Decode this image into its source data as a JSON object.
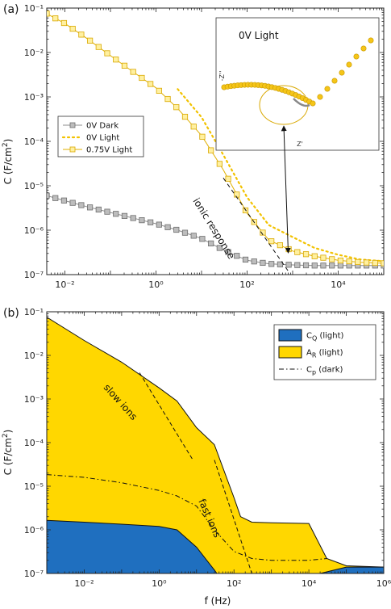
{
  "chart_data": [
    {
      "panel": "(a)",
      "type": "line",
      "ylabel": "C (F/cm²)",
      "xscale": "log",
      "yscale": "log",
      "xlim": [
        0.004,
        100000
      ],
      "ylim": [
        1e-07,
        0.1
      ],
      "xticks": [
        "10⁻²",
        "10⁰",
        "10²",
        "10⁴"
      ],
      "yticks": [
        "10⁻⁷",
        "10⁻⁶",
        "10⁻⁵",
        "10⁻⁴",
        "10⁻³",
        "10⁻²",
        "10⁻¹"
      ],
      "legend": {
        "position": "center-left"
      },
      "series": [
        {
          "name": "0V Dark",
          "color": "#8c8c8c",
          "style": "solid-square",
          "x": [
            0.004,
            0.01,
            0.03,
            0.1,
            0.3,
            1,
            3,
            10,
            30,
            100,
            300,
            1000,
            3000,
            10000,
            30000,
            100000
          ],
          "y": [
            6e-06,
            4.6e-06,
            3.4e-06,
            2.5e-06,
            1.9e-06,
            1.4e-06,
            1e-06,
            6.5e-07,
            3.6e-07,
            2.1e-07,
            1.75e-07,
            1.65e-07,
            1.6e-07,
            1.6e-07,
            1.6e-07,
            1.6e-07
          ]
        },
        {
          "name": "0V Light",
          "color": "#f2c200",
          "style": "dotted",
          "x": [
            3,
            10,
            30,
            100,
            300,
            1000,
            3000,
            10000,
            30000,
            100000
          ],
          "y": [
            0.0015,
            0.00035,
            5e-05,
            5.5e-06,
            1.3e-06,
            7e-07,
            4e-07,
            2.8e-07,
            2.2e-07,
            2e-07
          ]
        },
        {
          "name": "0.75V Light",
          "color": "#f2c200",
          "style": "solid-square",
          "x": [
            0.004,
            0.01,
            0.03,
            0.1,
            0.3,
            1,
            3,
            10,
            30,
            100,
            300,
            1000,
            3000,
            10000,
            30000,
            100000
          ],
          "y": [
            0.075,
            0.045,
            0.021,
            0.0085,
            0.0038,
            0.0016,
            0.00055,
            0.000135,
            2.3e-05,
            2.4e-06,
            6e-07,
            3.4e-07,
            2.6e-07,
            2.1e-07,
            1.9e-07,
            1.8e-07
          ]
        }
      ],
      "annotations": [
        {
          "text": "ionic response",
          "kind": "dashed-line",
          "x": [
            30,
            800
          ],
          "y": [
            1.5e-05,
            1.2e-07
          ]
        }
      ],
      "inset": {
        "title": "0V Light",
        "xlabel": "Z'",
        "ylabel": "-Z''",
        "arrow_target": {
          "x": 800,
          "y": 2.2e-07
        }
      }
    },
    {
      "panel": "(b)",
      "type": "area",
      "xlabel": "f (Hz)",
      "ylabel": "C (F/cm²)",
      "xscale": "log",
      "yscale": "log",
      "xlim": [
        0.001,
        1000000
      ],
      "ylim": [
        1e-07,
        0.1
      ],
      "xticks": [
        "10⁻²",
        "10⁰",
        "10²",
        "10⁴",
        "10⁶"
      ],
      "yticks": [
        "10⁻⁷",
        "10⁻⁶",
        "10⁻⁵",
        "10⁻⁴",
        "10⁻³",
        "10⁻²",
        "10⁻¹"
      ],
      "legend": {
        "position": "top-right"
      },
      "series": [
        {
          "name": "C<sub>Q</sub> (light)",
          "label": "C",
          "sub": "Q",
          "suffix": " (light)",
          "color": "#1f6fbf",
          "style": "filled",
          "x": [
            0.001,
            0.01,
            0.1,
            1,
            3,
            10,
            30,
            35,
            20000,
            100000,
            1000000
          ],
          "y": [
            1.65e-06,
            1.5e-06,
            1.35e-06,
            1.2e-06,
            1e-06,
            4e-07,
            1.2e-07,
            1e-07,
            1e-07,
            1.4e-07,
            1.4e-07
          ]
        },
        {
          "name": "A_R (light)",
          "label": "A",
          "sub": "R",
          "suffix": " (light)",
          "color": "#ffd700",
          "style": "filled",
          "x": [
            0.001,
            0.01,
            0.1,
            1,
            3,
            10,
            30,
            100,
            150,
            300,
            1000,
            10000,
            30000,
            100000,
            1000000
          ],
          "y": [
            0.075,
            0.022,
            0.007,
            0.0018,
            0.0009,
            0.00022,
            9e-05,
            5.5e-06,
            2e-06,
            1.5e-06,
            1.45e-06,
            1.4e-06,
            2.2e-07,
            1.5e-07,
            1.4e-07
          ]
        },
        {
          "name": "C_p (dark)",
          "label": "C",
          "sub": "p",
          "suffix": " (dark)",
          "color": "#000000",
          "style": "dash-dot",
          "x": [
            0.001,
            0.01,
            0.1,
            1,
            3,
            10,
            30,
            100,
            300,
            1000,
            10000,
            30000
          ],
          "y": [
            1.85e-05,
            1.6e-05,
            1.2e-05,
            8e-06,
            6e-06,
            3.5e-06,
            1e-06,
            3.2e-07,
            2.2e-07,
            2e-07,
            2e-07,
            2.2e-07
          ]
        }
      ],
      "annotations": [
        {
          "text": "slow ions",
          "kind": "dashed-line",
          "x": [
            0.3,
            8
          ],
          "y": [
            0.004,
            4e-05
          ]
        },
        {
          "text": "fast ions",
          "kind": "dashed-line",
          "x": [
            30,
            300
          ],
          "y": [
            4e-05,
            1e-07
          ]
        }
      ]
    }
  ]
}
